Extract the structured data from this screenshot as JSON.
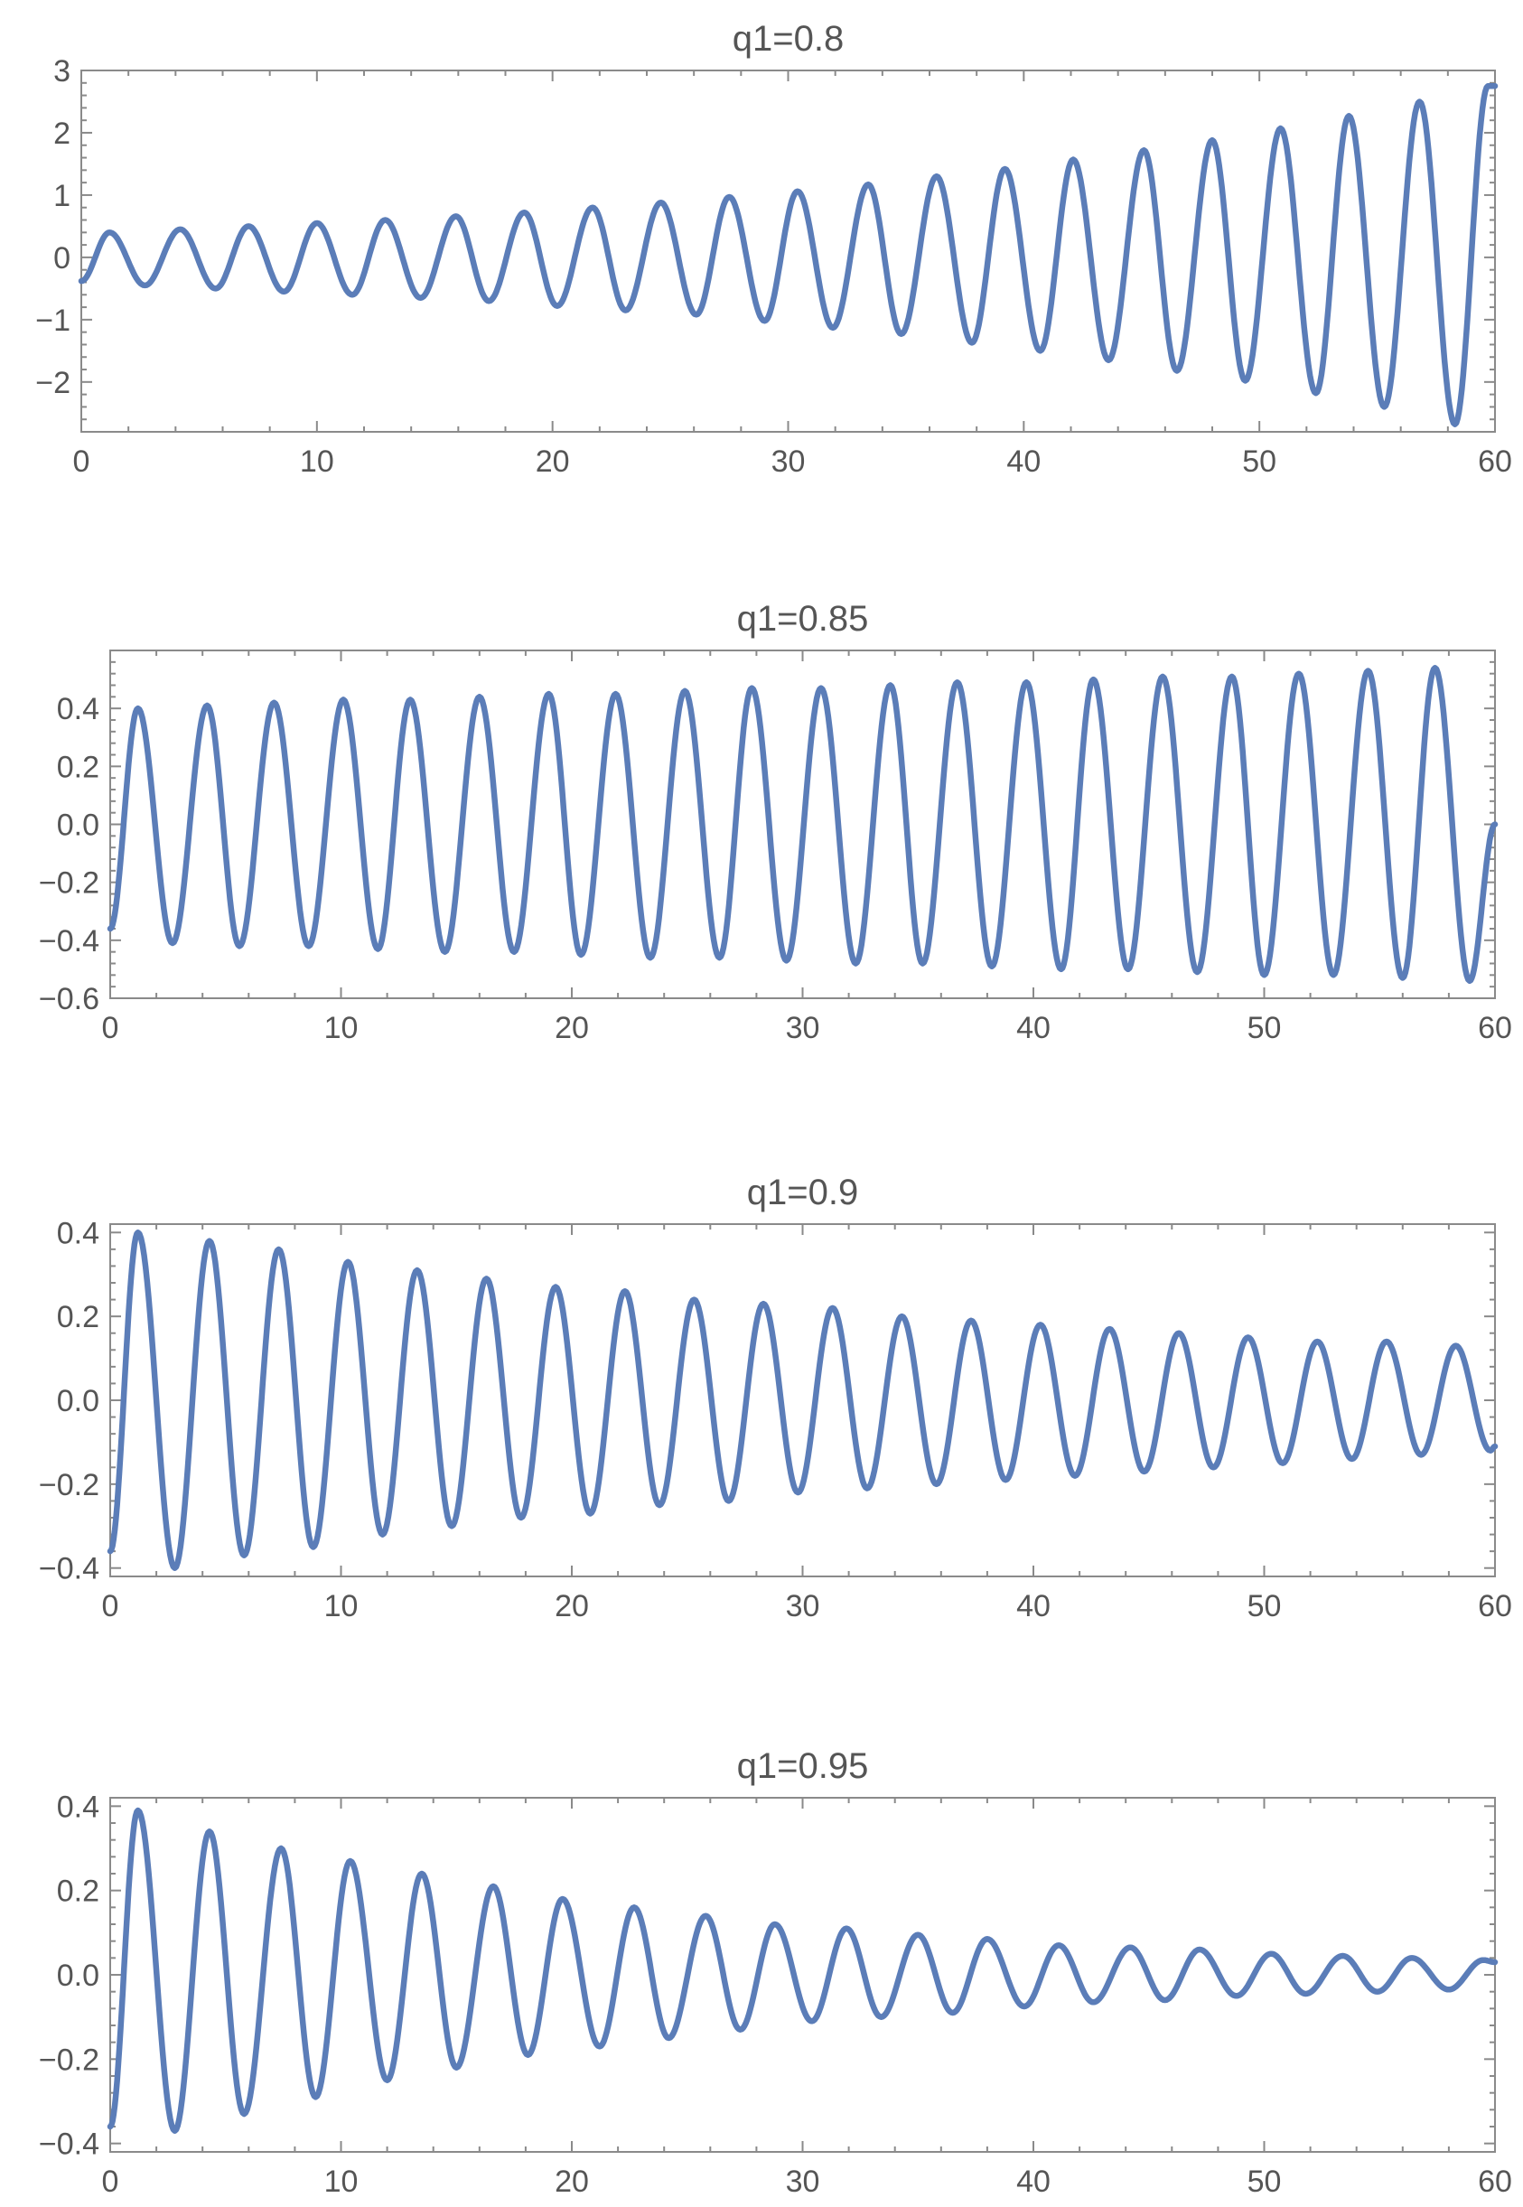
{
  "colors": {
    "series": "#5b7db8",
    "axis": "#8a8a8a",
    "text": "#555555"
  },
  "chart_data": [
    {
      "type": "line",
      "title": "q1=0.8",
      "xlim": [
        0,
        60
      ],
      "ylim": [
        -2.8,
        3.0
      ],
      "x_ticks": [
        0,
        10,
        20,
        30,
        40,
        50,
        60
      ],
      "x_tick_labels": [
        "0",
        "10",
        "20",
        "30",
        "40",
        "50",
        "60"
      ],
      "y_ticks": [
        -2,
        -1,
        0,
        1,
        2,
        3
      ],
      "y_tick_labels": [
        "−2",
        "−1",
        "0",
        "1",
        "2",
        "3"
      ],
      "series": [
        {
          "x": [
            0,
            1.2,
            2.7,
            4.2,
            5.7,
            7.1,
            8.6,
            10.0,
            11.5,
            12.9,
            14.4,
            15.9,
            17.3,
            18.8,
            20.2,
            21.7,
            23.1,
            24.6,
            26.1,
            27.5,
            29.0,
            30.4,
            31.9,
            33.4,
            34.8,
            36.3,
            37.8,
            39.2,
            40.7,
            42.1,
            43.6,
            45.1,
            46.5,
            48.0,
            49.4,
            50.9,
            52.4,
            53.8,
            55.3,
            56.8,
            58.3,
            59.7,
            60.0
          ],
          "y": [
            -0.38,
            0.4,
            -0.45,
            0.45,
            -0.5,
            0.5,
            -0.55,
            0.55,
            -0.6,
            0.6,
            -0.65,
            0.66,
            -0.7,
            0.72,
            -0.78,
            0.8,
            -0.85,
            0.88,
            -0.92,
            0.97,
            -1.02,
            1.06,
            -1.13,
            1.17,
            -1.23,
            1.3,
            -1.37,
            1.42,
            -1.5,
            1.57,
            -1.65,
            1.72,
            -1.82,
            1.88,
            -1.98,
            2.07,
            -2.18,
            2.27,
            -2.4,
            2.5,
            -2.68,
            2.75,
            2.75
          ]
        }
      ]
    },
    {
      "type": "line",
      "title": "q1=0.85",
      "xlim": [
        0,
        60
      ],
      "ylim": [
        -0.6,
        0.6
      ],
      "x_ticks": [
        0,
        10,
        20,
        30,
        40,
        50,
        60
      ],
      "x_tick_labels": [
        "0",
        "10",
        "20",
        "30",
        "40",
        "50",
        "60"
      ],
      "y_ticks": [
        -0.6,
        -0.4,
        -0.2,
        0.0,
        0.2,
        0.4
      ],
      "y_tick_labels": [
        "−0.6",
        "−0.4",
        "−0.2",
        "0.0",
        "0.2",
        "0.4"
      ],
      "series": [
        {
          "x": [
            0,
            1.2,
            2.7,
            4.2,
            5.6,
            7.1,
            8.6,
            10.1,
            11.6,
            13.0,
            14.5,
            16.0,
            17.5,
            19.0,
            20.4,
            21.9,
            23.4,
            24.9,
            26.4,
            27.8,
            29.3,
            30.8,
            32.3,
            33.8,
            35.2,
            36.7,
            38.2,
            39.7,
            41.2,
            42.6,
            44.1,
            45.6,
            47.1,
            48.6,
            50.0,
            51.5,
            53.0,
            54.5,
            56.0,
            57.4,
            58.9,
            60.0
          ],
          "y": [
            -0.36,
            0.4,
            -0.41,
            0.41,
            -0.42,
            0.42,
            -0.42,
            0.43,
            -0.43,
            0.43,
            -0.44,
            0.44,
            -0.44,
            0.45,
            -0.45,
            0.45,
            -0.46,
            0.46,
            -0.46,
            0.47,
            -0.47,
            0.47,
            -0.48,
            0.48,
            -0.48,
            0.49,
            -0.49,
            0.49,
            -0.5,
            0.5,
            -0.5,
            0.51,
            -0.51,
            0.51,
            -0.52,
            0.52,
            -0.52,
            0.53,
            -0.53,
            0.54,
            -0.54,
            0.0
          ]
        }
      ]
    },
    {
      "type": "line",
      "title": "q1=0.9",
      "xlim": [
        0,
        60
      ],
      "ylim": [
        -0.42,
        0.42
      ],
      "x_ticks": [
        0,
        10,
        20,
        30,
        40,
        50,
        60
      ],
      "x_tick_labels": [
        "0",
        "10",
        "20",
        "30",
        "40",
        "50",
        "60"
      ],
      "y_ticks": [
        -0.4,
        -0.2,
        0.0,
        0.2,
        0.4
      ],
      "y_tick_labels": [
        "−0.4",
        "−0.2",
        "0.0",
        "0.2",
        "0.4"
      ],
      "series": [
        {
          "x": [
            0,
            1.2,
            2.8,
            4.3,
            5.8,
            7.3,
            8.8,
            10.3,
            11.8,
            13.3,
            14.8,
            16.3,
            17.8,
            19.3,
            20.8,
            22.3,
            23.8,
            25.3,
            26.8,
            28.3,
            29.8,
            31.3,
            32.8,
            34.3,
            35.8,
            37.3,
            38.8,
            40.3,
            41.8,
            43.3,
            44.8,
            46.3,
            47.8,
            49.3,
            50.8,
            52.3,
            53.8,
            55.3,
            56.8,
            58.3,
            59.8,
            60.0
          ],
          "y": [
            -0.36,
            0.4,
            -0.4,
            0.38,
            -0.37,
            0.36,
            -0.35,
            0.33,
            -0.32,
            0.31,
            -0.3,
            0.29,
            -0.28,
            0.27,
            -0.27,
            0.26,
            -0.25,
            0.24,
            -0.24,
            0.23,
            -0.22,
            0.22,
            -0.21,
            0.2,
            -0.2,
            0.19,
            -0.19,
            0.18,
            -0.18,
            0.17,
            -0.17,
            0.16,
            -0.16,
            0.15,
            -0.15,
            0.14,
            -0.14,
            0.14,
            -0.13,
            0.13,
            -0.12,
            -0.11
          ]
        }
      ]
    },
    {
      "type": "line",
      "title": "q1=0.95",
      "xlim": [
        0,
        60
      ],
      "ylim": [
        -0.42,
        0.42
      ],
      "x_ticks": [
        0,
        10,
        20,
        30,
        40,
        50,
        60
      ],
      "x_tick_labels": [
        "0",
        "10",
        "20",
        "30",
        "40",
        "50",
        "60"
      ],
      "y_ticks": [
        -0.4,
        -0.2,
        0.0,
        0.2,
        0.4
      ],
      "y_tick_labels": [
        "−0.4",
        "−0.2",
        "0.0",
        "0.2",
        "0.4"
      ],
      "series": [
        {
          "x": [
            0,
            1.2,
            2.8,
            4.3,
            5.8,
            7.4,
            8.9,
            10.4,
            12.0,
            13.5,
            15.0,
            16.6,
            18.1,
            19.6,
            21.2,
            22.7,
            24.2,
            25.8,
            27.3,
            28.8,
            30.4,
            31.9,
            33.4,
            35.0,
            36.5,
            38.0,
            39.6,
            41.1,
            42.6,
            44.2,
            45.7,
            47.2,
            48.8,
            50.3,
            51.8,
            53.4,
            54.9,
            56.4,
            58.0,
            59.5,
            60.0
          ],
          "y": [
            -0.36,
            0.39,
            -0.37,
            0.34,
            -0.33,
            0.3,
            -0.29,
            0.27,
            -0.25,
            0.24,
            -0.22,
            0.21,
            -0.19,
            0.18,
            -0.17,
            0.16,
            -0.15,
            0.14,
            -0.13,
            0.12,
            -0.11,
            0.11,
            -0.1,
            0.095,
            -0.09,
            0.085,
            -0.075,
            0.07,
            -0.065,
            0.065,
            -0.06,
            0.06,
            -0.05,
            0.05,
            -0.045,
            0.045,
            -0.04,
            0.04,
            -0.035,
            0.035,
            0.03
          ]
        }
      ]
    }
  ]
}
